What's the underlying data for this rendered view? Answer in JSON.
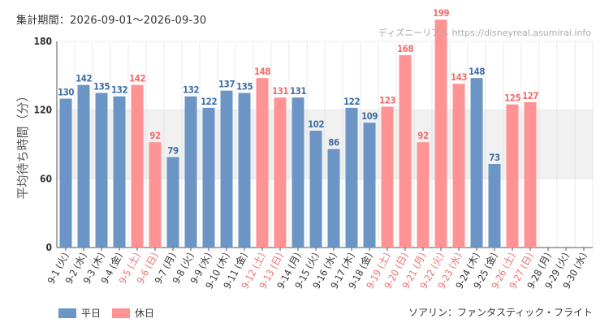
{
  "header": {
    "period_label": "集計期間：2026-09-01〜2026-09-30",
    "watermark": "ディズニーリアル https://disneyreal.asumirai.info"
  },
  "footer": {
    "attraction": "ソアリン：ファンタスティック・フライト"
  },
  "legend": {
    "weekday_label": "平日",
    "holiday_label": "休日"
  },
  "colors": {
    "weekday": "#6b95c5",
    "holiday": "#ff9393",
    "weekday_text": "#3f6fa6",
    "holiday_text": "#f06d6d",
    "band": "#f1f1f1",
    "grid": "#dddddd"
  },
  "chart_data": {
    "type": "bar",
    "ylabel": "平均待ち時間（分）",
    "ylim": [
      0,
      180
    ],
    "yticks": [
      0,
      60,
      120,
      180
    ],
    "band_range": [
      60,
      120
    ],
    "grid": true,
    "legend_position": "bottom-left",
    "categories": [
      "9-1 (火)",
      "9-2 (水)",
      "9-3 (木)",
      "9-4 (金)",
      "9-5 (土)",
      "9-6 (日)",
      "9-7 (月)",
      "9-8 (火)",
      "9-9 (水)",
      "9-10 (木)",
      "9-11 (金)",
      "9-12 (土)",
      "9-13 (日)",
      "9-14 (月)",
      "9-15 (火)",
      "9-16 (水)",
      "9-17 (木)",
      "9-18 (金)",
      "9-19 (土)",
      "9-20 (日)",
      "9-21 (月)",
      "9-22 (火)",
      "9-23 (水)",
      "9-24 (木)",
      "9-25 (金)",
      "9-26 (土)",
      "9-27 (日)",
      "9-28 (月)",
      "9-29 (火)",
      "9-30 (水)"
    ],
    "day_type": [
      "weekday",
      "weekday",
      "weekday",
      "weekday",
      "holiday",
      "holiday",
      "weekday",
      "weekday",
      "weekday",
      "weekday",
      "weekday",
      "holiday",
      "holiday",
      "weekday",
      "weekday",
      "weekday",
      "weekday",
      "weekday",
      "holiday",
      "holiday",
      "holiday",
      "holiday",
      "holiday",
      "weekday",
      "weekday",
      "holiday",
      "holiday",
      "weekday",
      "weekday",
      "weekday"
    ],
    "series": [
      {
        "name": "平均待ち時間",
        "values": [
          130,
          142,
          135,
          132,
          142,
          92,
          79,
          132,
          122,
          137,
          135,
          148,
          131,
          131,
          102,
          86,
          122,
          109,
          123,
          168,
          92,
          199,
          143,
          148,
          73,
          125,
          127,
          null,
          null,
          null
        ]
      }
    ]
  }
}
